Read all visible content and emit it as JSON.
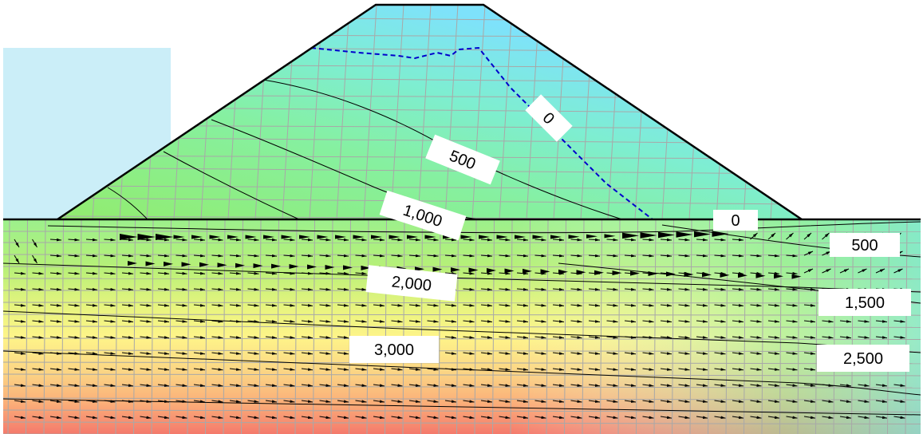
{
  "diagram": {
    "contour_labels": [
      {
        "id": "lbl-0-dam",
        "text": "0"
      },
      {
        "id": "lbl-500-dam",
        "text": "500"
      },
      {
        "id": "lbl-1000",
        "text": "1,000"
      },
      {
        "id": "lbl-0-toe",
        "text": "0"
      },
      {
        "id": "lbl-500-right",
        "text": "500"
      },
      {
        "id": "lbl-2000",
        "text": "2,000"
      },
      {
        "id": "lbl-1500-right",
        "text": "1,500"
      },
      {
        "id": "lbl-3000",
        "text": "3,000"
      },
      {
        "id": "lbl-2500-right",
        "text": "2,500"
      }
    ],
    "colors": {
      "reservoir": "#cbeef8",
      "dam_top": "#7ee2fb",
      "mid_green": "#8ef0a2",
      "foundation_green": "#b0f07a",
      "foundation_yellow": "#fef489",
      "foundation_orange": "#fbb87a",
      "foundation_red": "#f47f6f",
      "phreatic_line": "#0000cc",
      "mesh": "#a5a5a5"
    }
  }
}
